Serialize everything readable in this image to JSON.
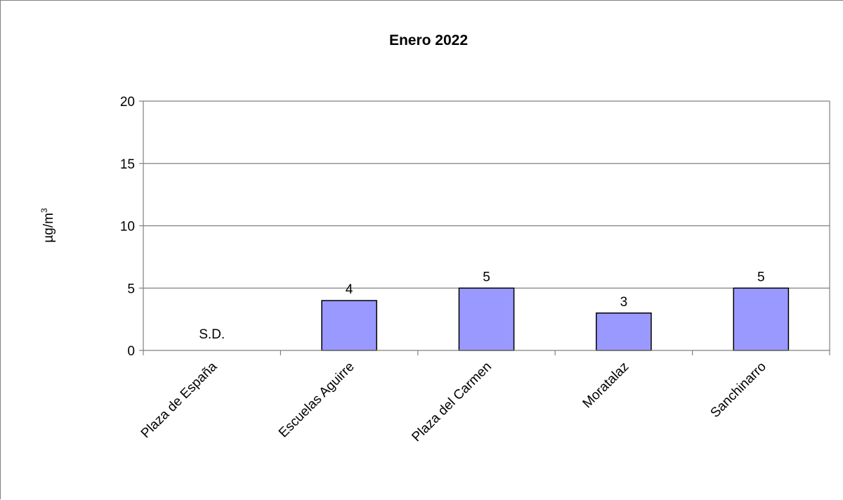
{
  "chart_data": {
    "type": "bar",
    "title": "Enero 2022",
    "xlabel": "",
    "ylabel": "µg/m",
    "ylabel_superscript": "3",
    "categories": [
      "Plaza de España",
      "Escuelas Aguirre",
      "Plaza del Carmen",
      "Moratalaz",
      "Sanchinarro"
    ],
    "values": [
      null,
      4,
      5,
      3,
      5
    ],
    "data_labels": [
      "S.D.",
      "4",
      "5",
      "3",
      "5"
    ],
    "ylim": [
      0,
      20
    ],
    "yticks": [
      0,
      5,
      10,
      15,
      20
    ],
    "grid": true,
    "legend": "none",
    "bar_color": "#9999ff",
    "bar_stroke": "#000000",
    "grid_color": "#808080",
    "axis_color": "#808080"
  }
}
